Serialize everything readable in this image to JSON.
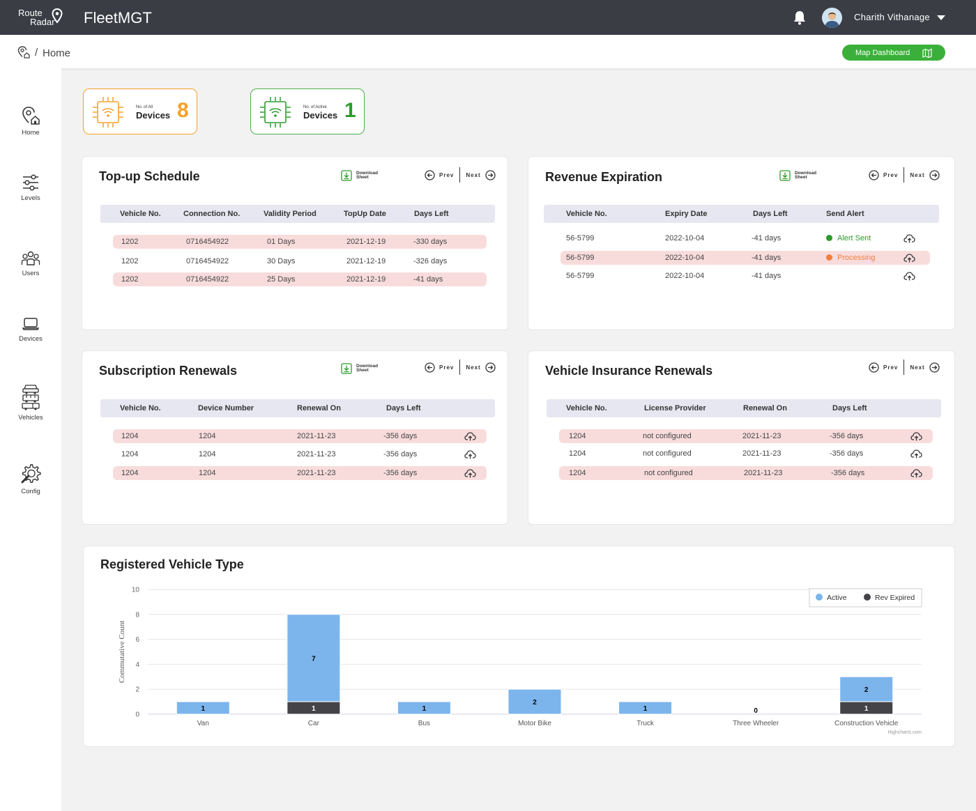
{
  "header": {
    "logo_line1": "Route",
    "logo_line2": "Radar",
    "app_name": "FleetMGT",
    "user_name": "Charith Vithanage",
    "icons": [
      "bell-icon",
      "avatar",
      "chevron-down-icon"
    ]
  },
  "breadcrumb": {
    "separator": "/",
    "current": "Home",
    "map_dashboard_label": "Map Dashboard"
  },
  "sidebar": {
    "items": [
      {
        "label": "Home",
        "icon": "home-pin-icon"
      },
      {
        "label": "Levels",
        "icon": "sliders-icon"
      },
      {
        "label": "Users",
        "icon": "users-icon"
      },
      {
        "label": "Devices",
        "icon": "laptop-icon"
      },
      {
        "label": "Vehicles",
        "icon": "vehicles-icon"
      },
      {
        "label": "Config",
        "icon": "gear-wrench-icon"
      }
    ]
  },
  "stats": {
    "all_devices": {
      "small": "No. of All",
      "big": "Devices",
      "value": "8",
      "color": "#f5a02a"
    },
    "active_devices": {
      "small": "No. of Active",
      "big": "Devices",
      "value": "1",
      "color": "#2e9a2e"
    }
  },
  "common": {
    "download_line1": "Download",
    "download_line2": "Sheet",
    "prev": "Prev",
    "next": "Next"
  },
  "topup": {
    "title": "Top-up Schedule",
    "columns": [
      "Vehicle No.",
      "Connection No.",
      "Validity Period",
      "TopUp Date",
      "Days Left"
    ],
    "rows": [
      [
        "1202",
        "0716454922",
        "01 Days",
        "2021-12-19",
        "-330 days"
      ],
      [
        "1202",
        "0716454922",
        "30 Days",
        "2021-12-19",
        "-326 days"
      ],
      [
        "1202",
        "0716454922",
        "25 Days",
        "2021-12-19",
        "-41 days"
      ]
    ]
  },
  "revenue": {
    "title": "Revenue Expiration",
    "columns": [
      "Vehicle No.",
      "Expiry Date",
      "Days Left",
      "Send Alert"
    ],
    "rows": [
      [
        "56-5799",
        "2022-10-04",
        "-41 days",
        "Alert Sent"
      ],
      [
        "56-5799",
        "2022-10-04",
        "-41 days",
        "Processing"
      ],
      [
        "56-5799",
        "2022-10-04",
        "-41 days",
        ""
      ]
    ],
    "status_colors": {
      "Alert Sent": "#2e9a2e",
      "Processing": "#f07f3c"
    }
  },
  "subscription": {
    "title": "Subscription Renewals",
    "columns": [
      "Vehicle No.",
      "Device Number",
      "Renewal On",
      "Days Left"
    ],
    "rows": [
      [
        "1204",
        "1204",
        "2021-11-23",
        "-356 days"
      ],
      [
        "1204",
        "1204",
        "2021-11-23",
        "-356 days"
      ],
      [
        "1204",
        "1204",
        "2021-11-23",
        "-356 days"
      ]
    ]
  },
  "insurance": {
    "title": "Vehicle Insurance Renewals",
    "columns": [
      "Vehicle No.",
      "License Provider",
      "Renewal On",
      "Days Left"
    ],
    "rows": [
      [
        "1204",
        "not configured",
        "2021-11-23",
        "-356 days"
      ],
      [
        "1204",
        "not configured",
        "2021-11-23",
        "-356 days"
      ],
      [
        "1204",
        "not configured",
        "2021-11-23",
        "-356 days"
      ]
    ]
  },
  "chart_data": {
    "type": "bar",
    "stacked": true,
    "title": "Registered Vehicle Type",
    "xlabel": "",
    "ylabel": "Commutative Count",
    "ylim": [
      0,
      10
    ],
    "yticks": [
      0,
      2,
      4,
      6,
      8,
      10
    ],
    "categories": [
      "Van",
      "Car",
      "Bus",
      "Motor Bike",
      "Truck",
      "Three Wheeler",
      "Construction Vehicle"
    ],
    "series": [
      {
        "name": "Active",
        "color": "#7cb5ec",
        "values": [
          1,
          7,
          1,
          2,
          1,
          0,
          2
        ]
      },
      {
        "name": "Rev Expired",
        "color": "#434348",
        "values": [
          0,
          1,
          0,
          0,
          0,
          0,
          1
        ]
      }
    ],
    "legend": "top-right",
    "grid": true,
    "credit": "Highcharts.com"
  }
}
